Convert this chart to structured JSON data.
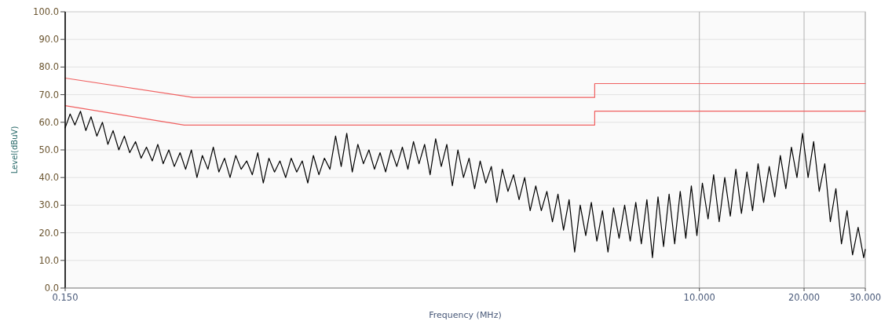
{
  "chart_data": {
    "type": "line",
    "xlabel": "Frequency (MHz)",
    "ylabel": "Level(dBuV)",
    "log": "x",
    "grid": true,
    "xlim": [
      0.15,
      30
    ],
    "ylim": [
      0,
      100
    ],
    "xticks": [
      {
        "value": 0.15,
        "label": "0.150"
      },
      {
        "value": 10,
        "label": "10.000"
      },
      {
        "value": 20,
        "label": "20.000"
      },
      {
        "value": 30,
        "label": "30.000"
      }
    ],
    "yticks": [
      {
        "value": 0,
        "label": "0.0"
      },
      {
        "value": 10,
        "label": "10.0"
      },
      {
        "value": 20,
        "label": "20.0"
      },
      {
        "value": 30,
        "label": "30.0"
      },
      {
        "value": 40,
        "label": "40.0"
      },
      {
        "value": 50,
        "label": "50.0"
      },
      {
        "value": 60,
        "label": "60.0"
      },
      {
        "value": 70,
        "label": "70.0"
      },
      {
        "value": 80,
        "label": "80.0"
      },
      {
        "value": 90,
        "label": "90.0"
      },
      {
        "value": 100,
        "label": "100.0"
      }
    ],
    "series": [
      {
        "color": "#f06060",
        "x": [
          0.15,
          0.35,
          5,
          5,
          30
        ],
        "values": [
          76,
          69,
          69,
          74,
          74
        ]
      },
      {
        "color": "#f06060",
        "x": [
          0.15,
          0.33,
          5,
          5,
          30
        ],
        "values": [
          66,
          59,
          59,
          64,
          64
        ]
      },
      {
        "color": "#000000",
        "x": [
          0.15,
          0.155,
          0.16,
          0.166,
          0.172,
          0.178,
          0.185,
          0.192,
          0.199,
          0.206,
          0.214,
          0.222,
          0.23,
          0.239,
          0.248,
          0.257,
          0.267,
          0.277,
          0.287,
          0.298,
          0.309,
          0.321,
          0.333,
          0.346,
          0.359,
          0.372,
          0.386,
          0.4,
          0.415,
          0.431,
          0.447,
          0.464,
          0.481,
          0.499,
          0.518,
          0.537,
          0.557,
          0.578,
          0.6,
          0.622,
          0.646,
          0.67,
          0.695,
          0.721,
          0.748,
          0.776,
          0.805,
          0.835,
          0.866,
          0.899,
          0.933,
          0.968,
          1.004,
          1.042,
          1.081,
          1.121,
          1.163,
          1.207,
          1.252,
          1.299,
          1.348,
          1.399,
          1.451,
          1.506,
          1.562,
          1.621,
          1.681,
          1.744,
          1.81,
          1.878,
          1.948,
          2.021,
          2.097,
          2.176,
          2.257,
          2.342,
          2.43,
          2.521,
          2.615,
          2.713,
          2.815,
          2.921,
          3.03,
          3.144,
          3.261,
          3.384,
          3.511,
          3.642,
          3.779,
          3.92,
          4.067,
          4.22,
          4.378,
          4.542,
          4.712,
          4.889,
          5.072,
          5.262,
          5.459,
          5.664,
          5.876,
          6.096,
          6.325,
          6.562,
          6.808,
          7.063,
          7.328,
          7.603,
          7.888,
          8.183,
          8.49,
          8.808,
          9.138,
          9.481,
          9.836,
          10.2,
          10.59,
          10.99,
          11.4,
          11.83,
          12.27,
          12.73,
          13.21,
          13.7,
          14.22,
          14.75,
          15.3,
          15.88,
          16.47,
          17.09,
          17.73,
          18.39,
          19.08,
          19.8,
          20.54,
          21.31,
          22.11,
          22.94,
          23.8,
          24.69,
          25.62,
          26.58,
          27.57,
          28.61,
          29.68,
          30
        ],
        "values": [
          58,
          63,
          59,
          64,
          57,
          62,
          55,
          60,
          52,
          57,
          50,
          55,
          49,
          53,
          47,
          51,
          46,
          52,
          45,
          50,
          44,
          49,
          43,
          50,
          40,
          48,
          43,
          51,
          42,
          47,
          40,
          48,
          43,
          46,
          41,
          49,
          38,
          47,
          42,
          46,
          40,
          47,
          42,
          46,
          38,
          48,
          41,
          47,
          43,
          55,
          44,
          56,
          42,
          52,
          45,
          50,
          43,
          49,
          42,
          50,
          44,
          51,
          43,
          53,
          45,
          52,
          41,
          54,
          44,
          52,
          37,
          50,
          40,
          47,
          36,
          46,
          38,
          44,
          31,
          43,
          35,
          41,
          32,
          40,
          28,
          37,
          28,
          35,
          24,
          34,
          21,
          32,
          13,
          30,
          19,
          31,
          17,
          28,
          13,
          29,
          18,
          30,
          17,
          31,
          16,
          32,
          11,
          33,
          15,
          34,
          16,
          35,
          18,
          37,
          19,
          38,
          25,
          41,
          24,
          40,
          26,
          43,
          27,
          42,
          28,
          45,
          31,
          44,
          33,
          48,
          36,
          51,
          40,
          56,
          40,
          53,
          35,
          45,
          24,
          36,
          16,
          28,
          12,
          22,
          11,
          14
        ]
      }
    ]
  }
}
